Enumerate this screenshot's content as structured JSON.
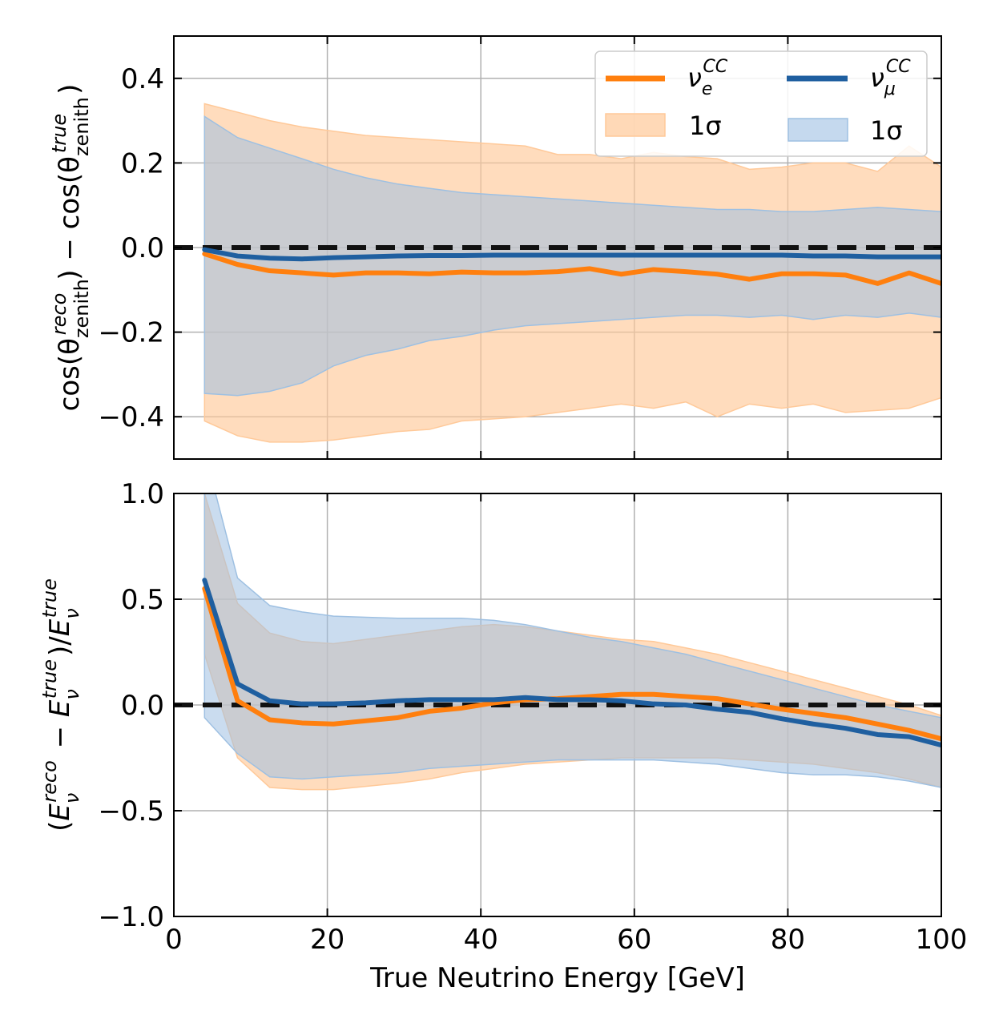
{
  "colors": {
    "nue": "#ff7f0e",
    "numu": "#1f5fa0",
    "nue_band": "#ffc999",
    "numu_band": "#9ec0e2",
    "zero_line": "#111111"
  },
  "legend": {
    "nue_label": "νeCC",
    "numu_label": "νμCC",
    "band_label": "1σ"
  },
  "chart_data": [
    {
      "type": "line",
      "panel": "top",
      "ylabel": "cos(θzenithreco) − cos(θzenithtrue)",
      "xlabel": "",
      "xlim": [
        0,
        100
      ],
      "ylim": [
        -0.5,
        0.5
      ],
      "yticks": [
        0.4,
        0.2,
        0.0,
        -0.2,
        -0.4
      ],
      "ytick_labels": [
        "0.4",
        "0.2",
        "0.0",
        "−0.2",
        "−0.4"
      ],
      "grid": true,
      "legend_position": "top-right",
      "x": [
        4,
        8.3,
        12.5,
        16.7,
        20.8,
        25,
        29.2,
        33.3,
        37.5,
        41.7,
        45.8,
        50,
        54.2,
        58.3,
        62.5,
        66.7,
        70.8,
        75,
        79.2,
        83.3,
        87.5,
        91.7,
        95.8,
        100
      ],
      "series": [
        {
          "name": "νeCC",
          "color_key": "nue",
          "values": [
            -0.015,
            -0.04,
            -0.055,
            -0.06,
            -0.065,
            -0.06,
            -0.06,
            -0.062,
            -0.058,
            -0.06,
            -0.06,
            -0.057,
            -0.05,
            -0.063,
            -0.052,
            -0.057,
            -0.063,
            -0.075,
            -0.062,
            -0.062,
            -0.065,
            -0.085,
            -0.06,
            -0.085
          ],
          "band_upper": [
            0.34,
            0.32,
            0.3,
            0.285,
            0.275,
            0.265,
            0.26,
            0.255,
            0.25,
            0.245,
            0.24,
            0.22,
            0.22,
            0.21,
            0.225,
            0.215,
            0.21,
            0.185,
            0.19,
            0.2,
            0.2,
            0.18,
            0.24,
            0.19
          ],
          "band_lower": [
            -0.41,
            -0.445,
            -0.46,
            -0.46,
            -0.455,
            -0.445,
            -0.435,
            -0.43,
            -0.41,
            -0.405,
            -0.4,
            -0.39,
            -0.38,
            -0.37,
            -0.38,
            -0.365,
            -0.4,
            -0.37,
            -0.38,
            -0.37,
            -0.39,
            -0.385,
            -0.38,
            -0.355
          ]
        },
        {
          "name": "νμCC",
          "color_key": "numu",
          "values": [
            -0.005,
            -0.02,
            -0.025,
            -0.027,
            -0.024,
            -0.022,
            -0.02,
            -0.019,
            -0.019,
            -0.018,
            -0.018,
            -0.018,
            -0.018,
            -0.018,
            -0.018,
            -0.018,
            -0.018,
            -0.018,
            -0.018,
            -0.02,
            -0.02,
            -0.022,
            -0.022,
            -0.022
          ],
          "band_upper": [
            0.31,
            0.26,
            0.235,
            0.21,
            0.185,
            0.165,
            0.15,
            0.14,
            0.13,
            0.125,
            0.12,
            0.115,
            0.11,
            0.105,
            0.1,
            0.095,
            0.09,
            0.09,
            0.085,
            0.085,
            0.09,
            0.095,
            0.09,
            0.085
          ],
          "band_lower": [
            -0.345,
            -0.35,
            -0.34,
            -0.32,
            -0.28,
            -0.255,
            -0.24,
            -0.22,
            -0.21,
            -0.195,
            -0.185,
            -0.18,
            -0.175,
            -0.17,
            -0.165,
            -0.16,
            -0.16,
            -0.165,
            -0.16,
            -0.17,
            -0.16,
            -0.165,
            -0.155,
            -0.165
          ]
        }
      ]
    },
    {
      "type": "line",
      "panel": "bottom",
      "ylabel": "(Eνreco − Eνtrue)/Eνtrue",
      "xlabel": "True Neutrino Energy [GeV]",
      "xlim": [
        0,
        100
      ],
      "ylim": [
        -1.0,
        1.0
      ],
      "xticks": [
        0,
        20,
        40,
        60,
        80,
        100
      ],
      "xtick_labels": [
        "0",
        "20",
        "40",
        "60",
        "80",
        "100"
      ],
      "yticks": [
        1.0,
        0.5,
        0.0,
        -0.5,
        -1.0
      ],
      "ytick_labels": [
        "1.0",
        "0.5",
        "0.0",
        "−0.5",
        "−1.0"
      ],
      "grid": true,
      "x": [
        4,
        8.3,
        12.5,
        16.7,
        20.8,
        25,
        29.2,
        33.3,
        37.5,
        41.7,
        45.8,
        50,
        54.2,
        58.3,
        62.5,
        66.7,
        70.8,
        75,
        79.2,
        83.3,
        87.5,
        91.7,
        95.8,
        100
      ],
      "series": [
        {
          "name": "νeCC",
          "color_key": "nue",
          "values": [
            0.55,
            0.02,
            -0.07,
            -0.085,
            -0.09,
            -0.075,
            -0.06,
            -0.03,
            -0.015,
            0.01,
            0.025,
            0.03,
            0.04,
            0.05,
            0.05,
            0.04,
            0.03,
            0.005,
            -0.02,
            -0.04,
            -0.06,
            -0.09,
            -0.12,
            -0.16
          ],
          "band_upper": [
            1.0,
            0.48,
            0.34,
            0.3,
            0.29,
            0.31,
            0.33,
            0.35,
            0.37,
            0.38,
            0.37,
            0.35,
            0.33,
            0.31,
            0.3,
            0.27,
            0.24,
            0.2,
            0.16,
            0.12,
            0.08,
            0.04,
            0.0,
            -0.05
          ],
          "band_lower": [
            0.24,
            -0.25,
            -0.39,
            -0.4,
            -0.4,
            -0.385,
            -0.37,
            -0.35,
            -0.32,
            -0.3,
            -0.28,
            -0.27,
            -0.26,
            -0.25,
            -0.25,
            -0.25,
            -0.25,
            -0.26,
            -0.27,
            -0.28,
            -0.3,
            -0.32,
            -0.35,
            -0.39
          ]
        },
        {
          "name": "νμCC",
          "color_key": "numu",
          "values": [
            0.59,
            0.1,
            0.02,
            0.005,
            0.005,
            0.01,
            0.02,
            0.025,
            0.025,
            0.025,
            0.035,
            0.025,
            0.025,
            0.02,
            0.005,
            0.0,
            -0.02,
            -0.035,
            -0.065,
            -0.09,
            -0.11,
            -0.14,
            -0.15,
            -0.19
          ],
          "band_upper": [
            1.2,
            0.6,
            0.47,
            0.44,
            0.42,
            0.415,
            0.41,
            0.41,
            0.41,
            0.4,
            0.38,
            0.35,
            0.32,
            0.3,
            0.27,
            0.24,
            0.2,
            0.16,
            0.12,
            0.08,
            0.04,
            0.0,
            -0.03,
            -0.06
          ],
          "band_lower": [
            -0.06,
            -0.23,
            -0.34,
            -0.35,
            -0.34,
            -0.33,
            -0.32,
            -0.3,
            -0.29,
            -0.28,
            -0.27,
            -0.26,
            -0.26,
            -0.26,
            -0.26,
            -0.27,
            -0.28,
            -0.3,
            -0.32,
            -0.33,
            -0.33,
            -0.34,
            -0.36,
            -0.39
          ]
        }
      ]
    }
  ]
}
